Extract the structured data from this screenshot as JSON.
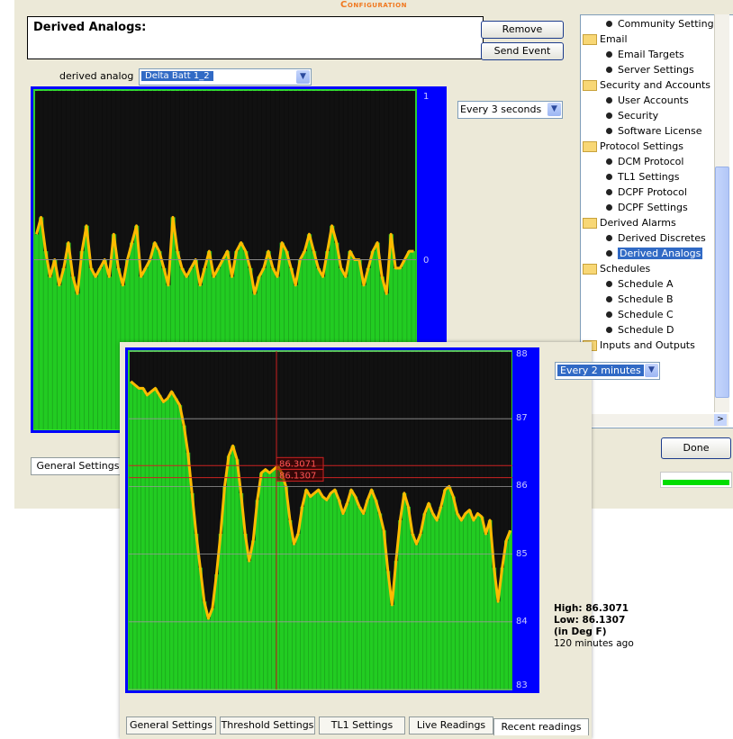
{
  "config": {
    "title": "Configuration",
    "panel_title": "Derived Analogs:",
    "remove_label": "Remove",
    "send_event_label": "Send Event",
    "derived_analog_label": "derived analog",
    "derived_analog_value": "Delta Batt 1_2",
    "interval_value": "Every 3 seconds",
    "axis_top": "1",
    "axis_mid": "0",
    "done_label": "Done",
    "tab_label": "General Settings"
  },
  "tree": [
    {
      "label": "Community Settings",
      "type": "leaf"
    },
    {
      "label": "Email",
      "type": "folder"
    },
    {
      "label": "Email Targets",
      "type": "leaf"
    },
    {
      "label": "Server Settings",
      "type": "leaf"
    },
    {
      "label": "Security and Accounts",
      "type": "folder"
    },
    {
      "label": "User Accounts",
      "type": "leaf"
    },
    {
      "label": "Security",
      "type": "leaf"
    },
    {
      "label": "Software License",
      "type": "leaf"
    },
    {
      "label": "Protocol Settings",
      "type": "folder"
    },
    {
      "label": "DCM Protocol",
      "type": "leaf"
    },
    {
      "label": "TL1 Settings",
      "type": "leaf"
    },
    {
      "label": "DCPF Protocol",
      "type": "leaf"
    },
    {
      "label": "DCPF Settings",
      "type": "leaf"
    },
    {
      "label": "Derived Alarms",
      "type": "folder"
    },
    {
      "label": "Derived Discretes",
      "type": "leaf"
    },
    {
      "label": "Derived Analogs",
      "type": "leaf",
      "selected": true
    },
    {
      "label": "Schedules",
      "type": "folder"
    },
    {
      "label": "Schedule A",
      "type": "leaf"
    },
    {
      "label": "Schedule B",
      "type": "leaf"
    },
    {
      "label": "Schedule C",
      "type": "leaf"
    },
    {
      "label": "Schedule D",
      "type": "leaf"
    },
    {
      "label": "Inputs and Outputs",
      "type": "folder"
    }
  ],
  "tree_scroll_right": ">",
  "progress": 1.0,
  "readings": {
    "interval_value": "Every 2 minutes",
    "y_ticks": [
      "88",
      "87",
      "86",
      "85",
      "84",
      "83"
    ],
    "marker_high": "86.3071",
    "marker_low": "86.1307",
    "stats_high": "High: 86.3071",
    "stats_low": "Low: 86.1307",
    "stats_units": "(in Deg F)",
    "stats_age": "120 minutes ago"
  },
  "tabs": [
    "General Settings",
    "Threshold Settings",
    "TL1 Settings",
    "Live Readings",
    "Recent readings"
  ],
  "active_tab": 4,
  "colors": {
    "chart_bg": "#0000ff",
    "plot_bg": "#111111",
    "fill": "#22cc22",
    "line": "#ffbb00",
    "marker": "#cc2222",
    "selection": "#316ac5"
  },
  "icons": [
    "dropdown-arrow-icon",
    "folder-icon",
    "bullet-icon"
  ],
  "chart_data": [
    {
      "type": "area",
      "ylim": [
        -1,
        1
      ],
      "yticks": [
        "1",
        "0"
      ],
      "values": [
        0.15,
        0.25,
        0.05,
        -0.1,
        0.0,
        -0.15,
        -0.05,
        0.1,
        -0.1,
        -0.2,
        0.05,
        0.2,
        -0.05,
        -0.1,
        -0.05,
        0.0,
        -0.1,
        0.15,
        -0.05,
        -0.15,
        0.0,
        0.1,
        0.2,
        -0.1,
        -0.05,
        0.0,
        0.1,
        0.05,
        -0.05,
        -0.15,
        0.25,
        0.05,
        -0.05,
        -0.1,
        -0.05,
        0.0,
        -0.15,
        -0.05,
        0.05,
        -0.1,
        -0.05,
        0.0,
        0.05,
        -0.1,
        0.05,
        0.1,
        0.05,
        -0.05,
        -0.2,
        -0.1,
        -0.05,
        0.05,
        -0.05,
        -0.1,
        0.1,
        0.05,
        -0.05,
        -0.15,
        0.0,
        0.05,
        0.15,
        0.05,
        -0.05,
        -0.1,
        0.05,
        0.2,
        0.1,
        -0.05,
        -0.1,
        0.05,
        0.0,
        0.0,
        -0.15,
        -0.05,
        0.05,
        0.1,
        -0.1,
        -0.2,
        0.15,
        -0.05,
        -0.05,
        0.0,
        0.05,
        0.05
      ]
    },
    {
      "type": "area",
      "ylim": [
        83,
        88
      ],
      "yticks": [
        "88",
        "87",
        "86",
        "85",
        "84",
        "83"
      ],
      "values": [
        87.55,
        87.5,
        87.45,
        87.45,
        87.35,
        87.4,
        87.45,
        87.35,
        87.25,
        87.3,
        87.4,
        87.3,
        87.2,
        86.9,
        86.5,
        85.9,
        85.3,
        84.8,
        84.3,
        84.05,
        84.2,
        84.7,
        85.3,
        86.0,
        86.45,
        86.6,
        86.4,
        85.9,
        85.3,
        84.9,
        85.2,
        85.8,
        86.2,
        86.25,
        86.2,
        86.25,
        86.3,
        86.2,
        86.0,
        85.5,
        85.15,
        85.3,
        85.7,
        85.95,
        85.85,
        85.9,
        85.95,
        85.85,
        85.8,
        85.9,
        85.95,
        85.8,
        85.6,
        85.75,
        85.95,
        85.85,
        85.7,
        85.6,
        85.8,
        85.95,
        85.8,
        85.6,
        85.35,
        84.75,
        84.25,
        84.9,
        85.5,
        85.9,
        85.7,
        85.3,
        85.15,
        85.3,
        85.6,
        85.75,
        85.6,
        85.5,
        85.7,
        85.95,
        86.0,
        85.85,
        85.6,
        85.5,
        85.6,
        85.65,
        85.5,
        85.6,
        85.55,
        85.3,
        85.5,
        84.8,
        84.3,
        84.8,
        85.2,
        85.35
      ]
    }
  ]
}
